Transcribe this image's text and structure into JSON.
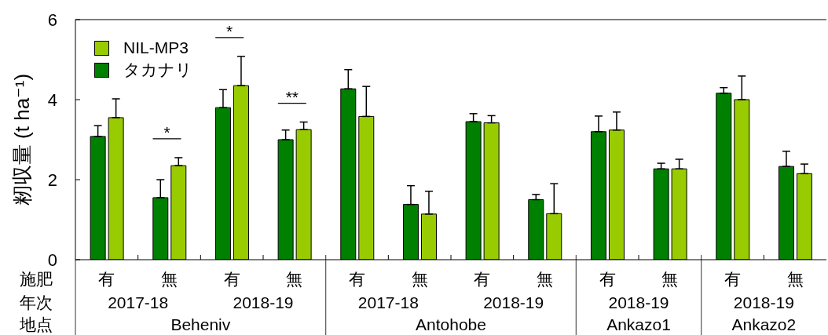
{
  "chart_data": {
    "type": "bar",
    "ylabel": "籾収量 (t ha⁻¹)",
    "categories": [
      "有",
      "無",
      "有",
      "無",
      "有",
      "無",
      "有",
      "無",
      "有",
      "無",
      "有",
      "無"
    ],
    "series": [
      {
        "name": "タカナリ",
        "color": "#008000",
        "values": [
          3.08,
          1.55,
          3.8,
          3.0,
          4.27,
          1.38,
          3.45,
          1.5,
          3.2,
          2.27,
          4.16,
          2.33
        ],
        "errors": [
          0.27,
          0.45,
          0.45,
          0.24,
          0.48,
          0.47,
          0.2,
          0.13,
          0.39,
          0.14,
          0.14,
          0.38
        ]
      },
      {
        "name": "NIL-MP3",
        "color": "#99cc00",
        "values": [
          3.55,
          2.35,
          4.35,
          3.25,
          3.58,
          1.14,
          3.42,
          1.15,
          3.24,
          2.27,
          4.0,
          2.15
        ],
        "errors": [
          0.47,
          0.2,
          0.73,
          0.19,
          0.75,
          0.57,
          0.18,
          0.75,
          0.45,
          0.24,
          0.59,
          0.24
        ]
      }
    ],
    "ylim": [
      0,
      6
    ],
    "yticks": [
      0,
      2,
      4,
      6
    ],
    "legend": "top left",
    "annotations": [
      "施肥",
      "年次",
      "地点",
      "2017-18",
      "2018-19",
      "2017-18",
      "2018-19",
      "2018-19",
      "2018-19",
      "Beheniv",
      "Antohobe",
      "Ankazo1",
      "Ankazo2",
      "*",
      "*",
      "**"
    ]
  }
}
